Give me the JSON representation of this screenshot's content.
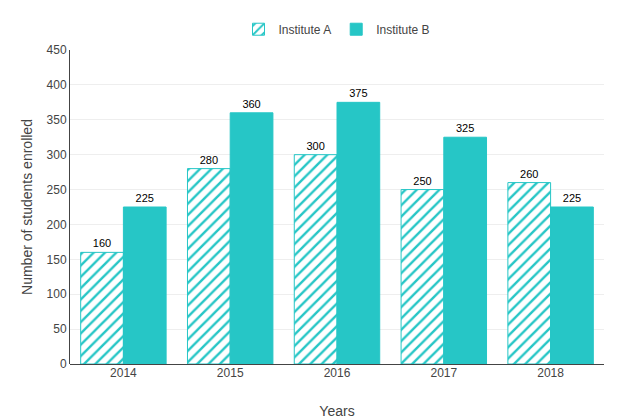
{
  "chart_data": {
    "type": "bar",
    "categories": [
      "2014",
      "2015",
      "2016",
      "2017",
      "2018"
    ],
    "series": [
      {
        "name": "Institute A",
        "color": "#26C6C6",
        "marker": "hatch",
        "values": [
          160,
          280,
          300,
          250,
          260
        ]
      },
      {
        "name": "Institute B",
        "color": "#26C6C6",
        "values": [
          225,
          360,
          375,
          325,
          225
        ]
      }
    ],
    "xlabel": "Years",
    "ylabel": "Number of students enrolled",
    "ylim": [
      0,
      450
    ],
    "yticks": [
      0,
      50,
      100,
      150,
      200,
      250,
      300,
      350,
      400,
      450
    ],
    "grid": true,
    "legend": "top",
    "data_labels": true
  }
}
